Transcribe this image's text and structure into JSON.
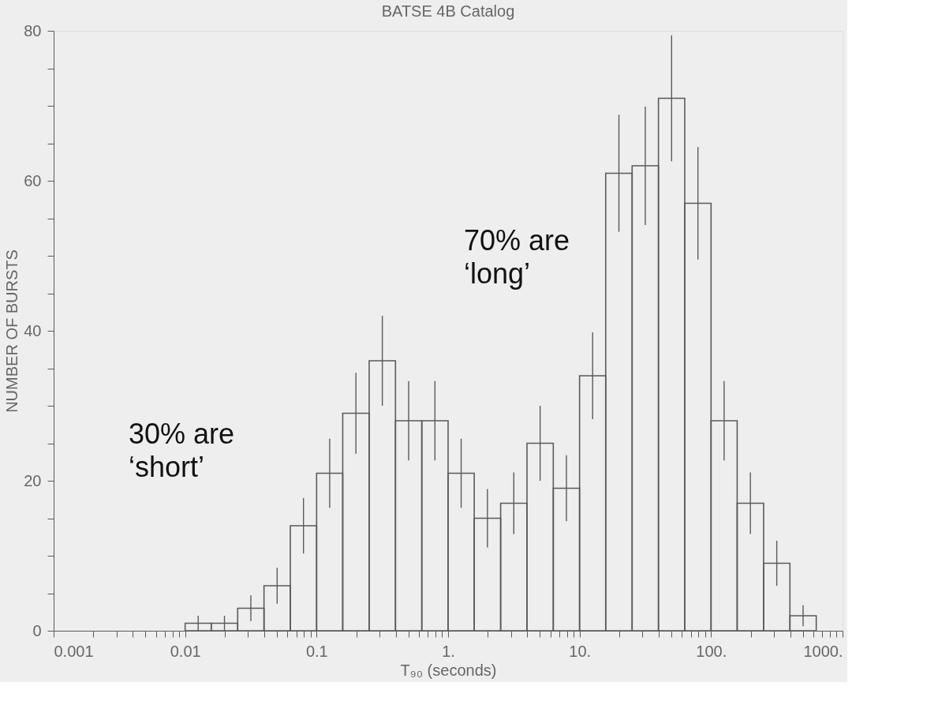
{
  "chart_data": {
    "type": "histogram",
    "title": "BATSE 4B Catalog",
    "xlabel": "T₉₀ (seconds)",
    "ylabel": "NUMBER OF BURSTS",
    "log": "x",
    "color": "#5a5a5a",
    "bins": [
      0.01,
      0.0158,
      0.0251,
      0.0398,
      0.0631,
      0.1,
      0.158,
      0.251,
      0.398,
      0.631,
      1,
      1.58,
      2.51,
      3.98,
      6.31,
      10,
      15.8,
      25.1,
      39.8,
      63.1,
      100,
      158,
      251,
      398,
      631
    ],
    "values": [
      1,
      1,
      3,
      6,
      14,
      21,
      29,
      36,
      28,
      28,
      21,
      15,
      17,
      25,
      19,
      34,
      61,
      62,
      71,
      57,
      28,
      17,
      9,
      2
    ],
    "errors": [
      1,
      1,
      1.7,
      2.4,
      3.7,
      4.6,
      5.4,
      6,
      5.3,
      5.3,
      4.6,
      3.9,
      4.1,
      5,
      4.4,
      5.8,
      7.8,
      7.9,
      8.4,
      7.5,
      5.3,
      4.1,
      3,
      1.4
    ],
    "xlim": [
      0.001,
      1000
    ],
    "xticks": [
      {
        "value": 0.001,
        "label": "0.001"
      },
      {
        "value": 0.002,
        "label": null
      },
      {
        "value": 0.003,
        "label": null
      },
      {
        "value": 0.004,
        "label": null
      },
      {
        "value": 0.005,
        "label": null
      },
      {
        "value": 0.006,
        "label": null
      },
      {
        "value": 0.007,
        "label": null
      },
      {
        "value": 0.008,
        "label": null
      },
      {
        "value": 0.009,
        "label": null
      },
      {
        "value": 0.01,
        "label": "0.01"
      },
      {
        "value": 0.02,
        "label": null
      },
      {
        "value": 0.03,
        "label": null
      },
      {
        "value": 0.04,
        "label": null
      },
      {
        "value": 0.05,
        "label": null
      },
      {
        "value": 0.06,
        "label": null
      },
      {
        "value": 0.07,
        "label": null
      },
      {
        "value": 0.08,
        "label": null
      },
      {
        "value": 0.09,
        "label": null
      },
      {
        "value": 0.1,
        "label": "0.1"
      },
      {
        "value": 0.2,
        "label": null
      },
      {
        "value": 0.3,
        "label": null
      },
      {
        "value": 0.4,
        "label": null
      },
      {
        "value": 0.5,
        "label": null
      },
      {
        "value": 0.6,
        "label": null
      },
      {
        "value": 0.7,
        "label": null
      },
      {
        "value": 0.8,
        "label": null
      },
      {
        "value": 0.9,
        "label": null
      },
      {
        "value": 1,
        "label": "1."
      },
      {
        "value": 2,
        "label": null
      },
      {
        "value": 3,
        "label": null
      },
      {
        "value": 4,
        "label": null
      },
      {
        "value": 5,
        "label": null
      },
      {
        "value": 6,
        "label": null
      },
      {
        "value": 7,
        "label": null
      },
      {
        "value": 8,
        "label": null
      },
      {
        "value": 9,
        "label": null
      },
      {
        "value": 10,
        "label": "10."
      },
      {
        "value": 20,
        "label": null
      },
      {
        "value": 30,
        "label": null
      },
      {
        "value": 40,
        "label": null
      },
      {
        "value": 50,
        "label": null
      },
      {
        "value": 60,
        "label": null
      },
      {
        "value": 70,
        "label": null
      },
      {
        "value": 80,
        "label": null
      },
      {
        "value": 90,
        "label": null
      },
      {
        "value": 100,
        "label": "100."
      },
      {
        "value": 200,
        "label": null
      },
      {
        "value": 300,
        "label": null
      },
      {
        "value": 400,
        "label": null
      },
      {
        "value": 500,
        "label": null
      },
      {
        "value": 600,
        "label": null
      },
      {
        "value": 700,
        "label": null
      },
      {
        "value": 800,
        "label": null
      },
      {
        "value": 900,
        "label": null
      },
      {
        "value": 1000,
        "label": "1000."
      }
    ],
    "ylim": [
      0,
      80
    ],
    "yticks": [
      0,
      {
        "value": 5,
        "label": null
      },
      {
        "value": 10,
        "label": null
      },
      {
        "value": 15,
        "label": null
      },
      20,
      {
        "value": 25,
        "label": null
      },
      {
        "value": 30,
        "label": null
      },
      {
        "value": 35,
        "label": null
      },
      40,
      {
        "value": 45,
        "label": null
      },
      {
        "value": 50,
        "label": null
      },
      {
        "value": 55,
        "label": null
      },
      60,
      {
        "value": 65,
        "label": null
      },
      {
        "value": 70,
        "label": null
      },
      {
        "value": 75,
        "label": null
      },
      80
    ],
    "annotations": [
      "70% are\n‘long’",
      "30% are\n‘short’"
    ]
  }
}
